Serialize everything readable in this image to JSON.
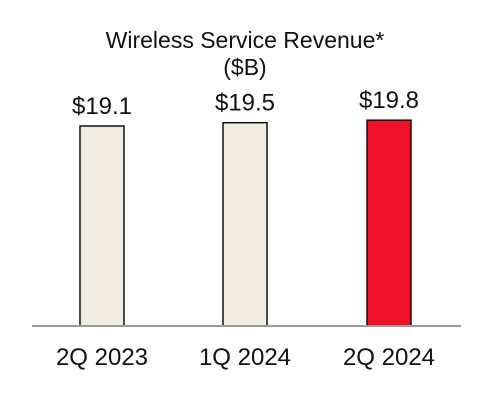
{
  "chart_data": {
    "type": "bar",
    "title": "Wireless Service Revenue*",
    "subtitle": "($B)",
    "categories": [
      "2Q 2023",
      "1Q 2024",
      "2Q 2024"
    ],
    "values": [
      19.1,
      19.5,
      19.8
    ],
    "value_labels": [
      "$19.1",
      "$19.5",
      "$19.8"
    ],
    "bar_colors": [
      "#f1ece0",
      "#f1ece0",
      "#ee1127"
    ],
    "bar_outline_color": "#111111",
    "axis_color": "#9a9a9a",
    "grid": false,
    "legend": "none"
  }
}
